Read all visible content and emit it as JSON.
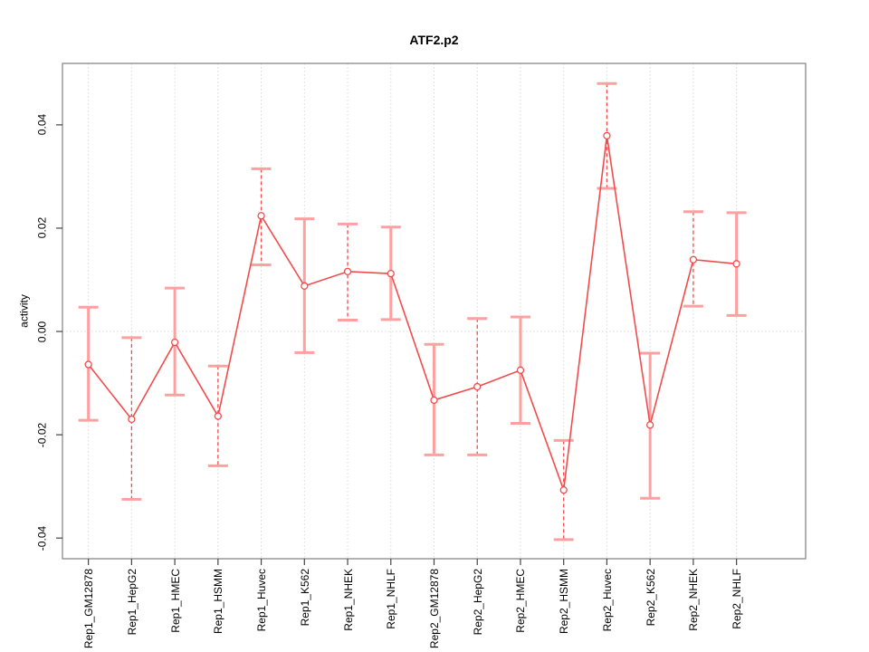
{
  "figure": {
    "background": "#ffffff"
  },
  "chart_data": {
    "type": "line",
    "title": "ATF2.p2",
    "xlabel": "",
    "ylabel": "activity",
    "ylim": [
      -0.044,
      0.0519
    ],
    "yticks": [
      0.04,
      0.02,
      0,
      -0.02,
      -0.04
    ],
    "ytick_labels": [
      "0.04",
      "0.02",
      "0.00",
      "-0.02",
      "-0.04"
    ],
    "grid": "dotted light-gray vertical line at every category; dotted light-gray horizontal line at y=0",
    "legend_position": "none",
    "marker": "open-circle",
    "error_bars": true,
    "categories": [
      "Rep1_GM12878",
      "Rep1_HepG2",
      "Rep1_HMEC",
      "Rep1_HSMM",
      "Rep1_Huvec",
      "Rep1_K562",
      "Rep1_NHEK",
      "Rep1_NHLF",
      "Rep2_GM12878",
      "Rep2_HepG2",
      "Rep2_HMEC",
      "Rep2_HSMM",
      "Rep2_Huvec",
      "Rep2_K562",
      "Rep2_NHEK",
      "Rep2_NHLF"
    ],
    "series": [
      {
        "name": "activity",
        "values": [
          -0.0064,
          -0.017,
          -0.0021,
          -0.0164,
          0.0224,
          0.0088,
          0.0116,
          0.0112,
          -0.0133,
          -0.0107,
          -0.0075,
          -0.0307,
          0.0379,
          -0.0181,
          0.0139,
          0.0131
        ],
        "ci_upper": [
          0.0047,
          -0.0012,
          0.0084,
          -0.0067,
          0.0315,
          0.0218,
          0.0208,
          0.0202,
          -0.0025,
          0.0025,
          0.0028,
          -0.0211,
          0.048,
          -0.0042,
          0.0232,
          0.023
        ],
        "ci_lower": [
          -0.0172,
          -0.0325,
          -0.0123,
          -0.026,
          0.0129,
          -0.0041,
          0.0022,
          0.0023,
          -0.0239,
          -0.0239,
          -0.0178,
          -0.0403,
          0.0277,
          -0.0323,
          0.0049,
          0.0031
        ],
        "stem_style": [
          "solid",
          "dashed",
          "solid",
          "dashed",
          "dashed",
          "solid",
          "dashed",
          "solid",
          "solid",
          "dashed",
          "solid",
          "dashed",
          "dashed",
          "solid",
          "dashed",
          "solid"
        ]
      }
    ],
    "colors": {
      "line": "#f34b4b",
      "marker_stroke": "#f34b4b",
      "marker_fill": "#ffffff",
      "errorbar_solid_stem": "#ffa0a0",
      "errorbar_cap": "#ffa0a0",
      "errorbar_dashed_stem": "#f34b4b",
      "gridline": "#d9d9d9",
      "box": "#7f7f7f",
      "tick": "#444444",
      "text": "#000000"
    }
  }
}
